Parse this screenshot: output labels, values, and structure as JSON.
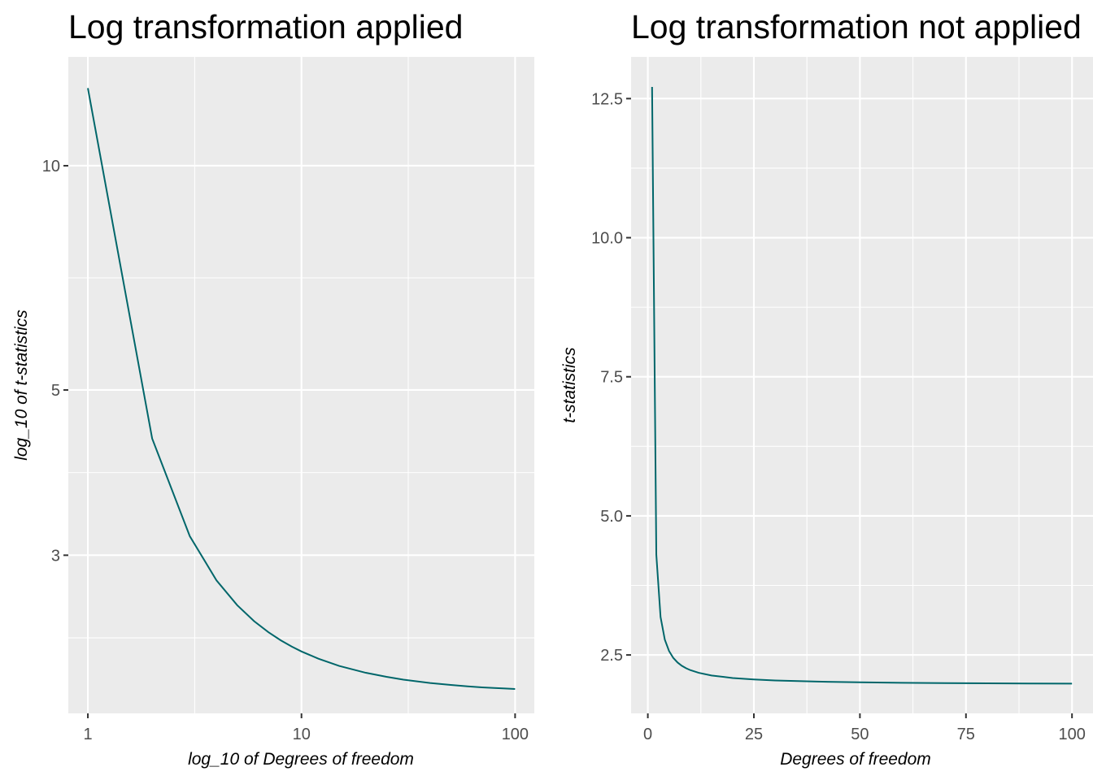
{
  "chart_data": [
    {
      "type": "line",
      "title": "Log transformation applied",
      "xlabel": "log_10 of Degrees of freedom",
      "ylabel": "log_10 of t-statistics",
      "x_scale": "log10",
      "y_scale": "log10",
      "xlim": [
        0.81,
        123
      ],
      "ylim": [
        1.84,
        14.0
      ],
      "x_ticks": [
        1,
        10,
        100
      ],
      "x_tick_labels": [
        "1",
        "10",
        "100"
      ],
      "y_ticks": [
        3,
        5,
        10
      ],
      "y_tick_labels": [
        "3",
        "5",
        "10"
      ],
      "grid": true,
      "color": "#00666a",
      "x": [
        1,
        2,
        3,
        4,
        5,
        6,
        7,
        8,
        9,
        10,
        12,
        15,
        20,
        25,
        30,
        40,
        50,
        60,
        70,
        80,
        90,
        100
      ],
      "y": [
        12.71,
        4.303,
        3.182,
        2.776,
        2.571,
        2.447,
        2.365,
        2.306,
        2.262,
        2.228,
        2.179,
        2.131,
        2.086,
        2.06,
        2.042,
        2.021,
        2.009,
        2.0,
        1.994,
        1.99,
        1.987,
        1.984
      ]
    },
    {
      "type": "line",
      "title": "Log transformation not applied",
      "xlabel": "Degrees of freedom",
      "ylabel": "t-statistics",
      "x_scale": "linear",
      "y_scale": "linear",
      "xlim": [
        -3.95,
        104.95
      ],
      "ylim": [
        1.45,
        13.25
      ],
      "x_ticks": [
        0,
        25,
        50,
        75,
        100
      ],
      "x_tick_labels": [
        "0",
        "25",
        "50",
        "75",
        "100"
      ],
      "y_ticks": [
        2.5,
        5.0,
        7.5,
        10.0,
        12.5
      ],
      "y_tick_labels": [
        "2.5",
        "5.0",
        "7.5",
        "10.0",
        "12.5"
      ],
      "grid": true,
      "color": "#00666a",
      "x": [
        1,
        2,
        3,
        4,
        5,
        6,
        7,
        8,
        9,
        10,
        12,
        15,
        20,
        25,
        30,
        40,
        50,
        60,
        70,
        80,
        90,
        100
      ],
      "y": [
        12.71,
        4.303,
        3.182,
        2.776,
        2.571,
        2.447,
        2.365,
        2.306,
        2.262,
        2.228,
        2.179,
        2.131,
        2.086,
        2.06,
        2.042,
        2.021,
        2.009,
        2.0,
        1.994,
        1.99,
        1.987,
        1.984
      ]
    }
  ]
}
